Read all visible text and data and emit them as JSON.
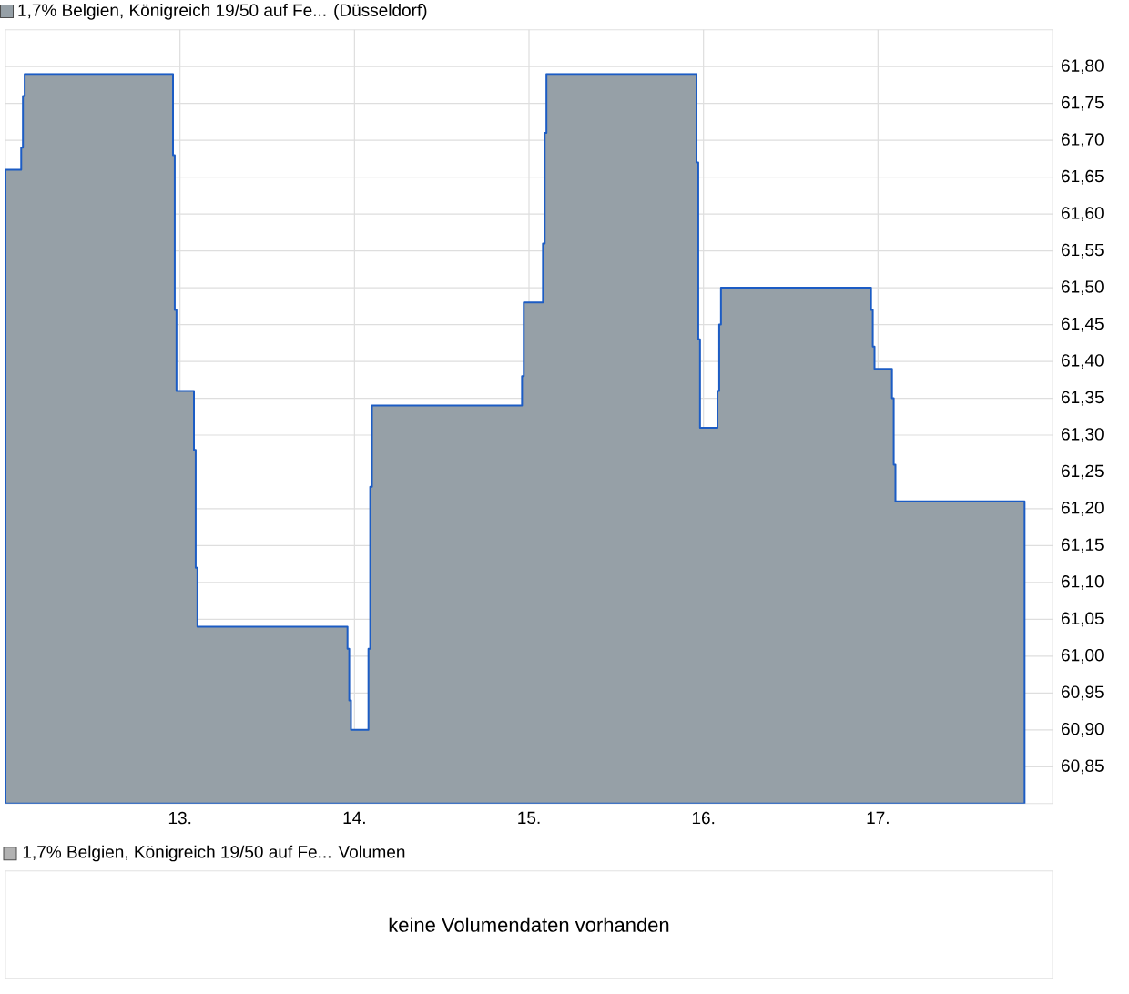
{
  "chart_data": [
    {
      "type": "area",
      "x": [
        12.0,
        12.09,
        12.09,
        12.1,
        12.1,
        12.11,
        12.11,
        12.96,
        12.96,
        12.97,
        12.97,
        12.98,
        12.98,
        13.08,
        13.08,
        13.09,
        13.09,
        13.1,
        13.1,
        13.96,
        13.96,
        13.97,
        13.97,
        13.98,
        13.98,
        14.08,
        14.08,
        14.09,
        14.09,
        14.1,
        14.1,
        14.96,
        14.96,
        14.97,
        14.97,
        15.08,
        15.08,
        15.09,
        15.09,
        15.1,
        15.1,
        15.96,
        15.96,
        15.97,
        15.97,
        15.98,
        15.98,
        16.08,
        16.08,
        16.09,
        16.09,
        16.1,
        16.1,
        16.96,
        16.96,
        16.97,
        16.97,
        16.98,
        16.98,
        17.08,
        17.08,
        17.09,
        17.09,
        17.1,
        17.1,
        17.84
      ],
      "series": [
        {
          "name": "1,7% Belgien, Königreich 19/50 auf Fe... (Düsseldorf)",
          "color": "#96a0a7",
          "values": [
            61.66,
            61.66,
            61.69,
            61.69,
            61.76,
            61.76,
            61.79,
            61.79,
            61.68,
            61.68,
            61.47,
            61.47,
            61.36,
            61.36,
            61.28,
            61.28,
            61.12,
            61.12,
            61.04,
            61.04,
            61.01,
            61.01,
            60.94,
            60.94,
            60.9,
            60.9,
            61.01,
            61.01,
            61.23,
            61.23,
            61.34,
            61.34,
            61.38,
            61.38,
            61.48,
            61.48,
            61.56,
            61.56,
            61.71,
            61.71,
            61.79,
            61.79,
            61.67,
            61.67,
            61.43,
            61.43,
            61.31,
            61.31,
            61.36,
            61.36,
            61.45,
            61.45,
            61.5,
            61.5,
            61.47,
            61.47,
            61.42,
            61.42,
            61.39,
            61.39,
            61.35,
            61.35,
            61.26,
            61.26,
            61.21,
            61.21
          ]
        }
      ],
      "xlim": [
        12,
        18
      ],
      "xticks": [
        {
          "value": 13,
          "label": "13."
        },
        {
          "value": 14,
          "label": "14."
        },
        {
          "value": 15,
          "label": "15."
        },
        {
          "value": 16,
          "label": "16."
        },
        {
          "value": 17,
          "label": "17."
        }
      ],
      "ylim": [
        60.8,
        61.85
      ],
      "yticks": [
        {
          "value": 60.85,
          "label": "60,85"
        },
        {
          "value": 60.9,
          "label": "60,90"
        },
        {
          "value": 60.95,
          "label": "60,95"
        },
        {
          "value": 61.0,
          "label": "61,00"
        },
        {
          "value": 61.05,
          "label": "61,05"
        },
        {
          "value": 61.1,
          "label": "61,10"
        },
        {
          "value": 61.15,
          "label": "61,15"
        },
        {
          "value": 61.2,
          "label": "61,20"
        },
        {
          "value": 61.25,
          "label": "61,25"
        },
        {
          "value": 61.3,
          "label": "61,30"
        },
        {
          "value": 61.35,
          "label": "61,35"
        },
        {
          "value": 61.4,
          "label": "61,40"
        },
        {
          "value": 61.45,
          "label": "61,45"
        },
        {
          "value": 61.5,
          "label": "61,50"
        },
        {
          "value": 61.55,
          "label": "61,55"
        },
        {
          "value": 61.6,
          "label": "61,60"
        },
        {
          "value": 61.65,
          "label": "61,65"
        },
        {
          "value": 61.7,
          "label": "61,70"
        },
        {
          "value": 61.75,
          "label": "61,75"
        },
        {
          "value": 61.8,
          "label": "61,80"
        }
      ],
      "grid": true,
      "legend": "top left"
    },
    {
      "type": "other",
      "title": "1,7% Belgien, Königreich 19/50 auf Fe... Volumen",
      "annotations": [
        "keine Volumendaten vorhanden"
      ]
    }
  ]
}
